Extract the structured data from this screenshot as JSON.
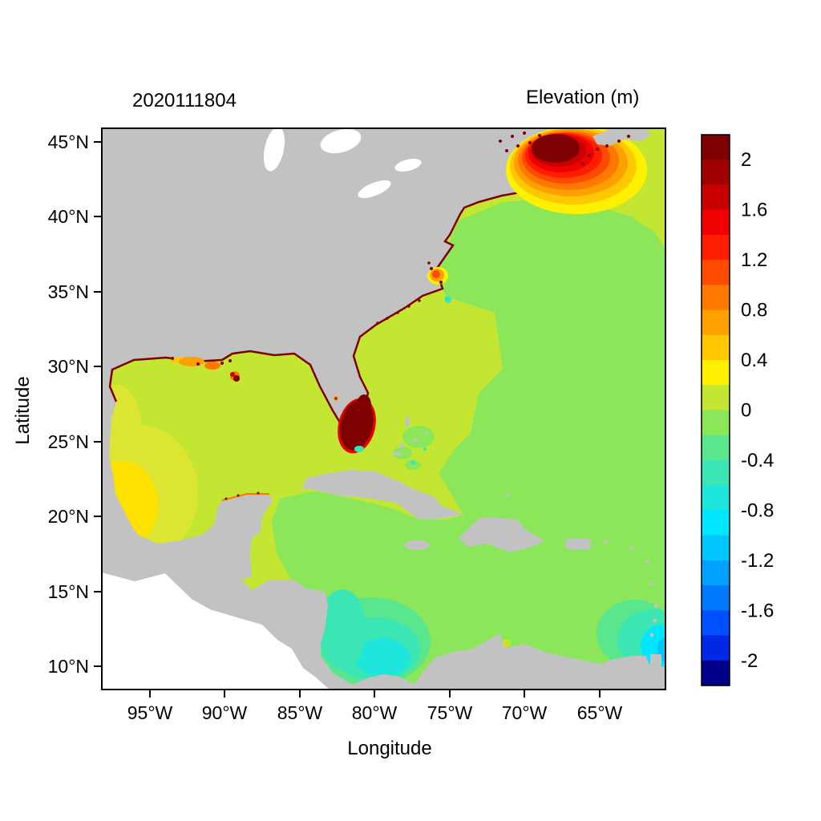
{
  "figure": {
    "timestamp_title": "2020111804",
    "colorbar_title": "Elevation (m)"
  },
  "axes": {
    "x": {
      "label": "Longitude",
      "ticks": [
        "95°W",
        "90°W",
        "85°W",
        "80°W",
        "75°W",
        "70°W",
        "65°W"
      ]
    },
    "y": {
      "label": "Latitude",
      "ticks": [
        "45°N",
        "40°N",
        "35°N",
        "30°N",
        "25°N",
        "20°N",
        "15°N",
        "10°N"
      ]
    }
  },
  "colorbar": {
    "labels": [
      "2",
      "1.6",
      "1.2",
      "0.8",
      "0.4",
      "0",
      "-0.4",
      "-0.8",
      "-1.2",
      "-1.6",
      "-2"
    ],
    "values": [
      2,
      1.6,
      1.2,
      0.8,
      0.4,
      0,
      -0.4,
      -0.8,
      -1.2,
      -1.6,
      -2
    ],
    "range": [
      -2.2,
      2.2
    ],
    "units": "m",
    "colors_top_to_bottom": [
      "#7F0000",
      "#A00000",
      "#C80000",
      "#F00000",
      "#FF1E00",
      "#FF4B00",
      "#FF7800",
      "#FFA000",
      "#FFC800",
      "#FFF000",
      "#C3E632",
      "#8CE65A",
      "#5AE68C",
      "#3CE6B4",
      "#1EE6DC",
      "#00E6FF",
      "#00C8FF",
      "#00A0FF",
      "#0078FF",
      "#0050FF",
      "#0028E6",
      "#00008B"
    ]
  },
  "map_colors": {
    "land": "#C2C2C2",
    "outside_domain": "#FFFFFF",
    "ocean_base": "#C3E632",
    "ocean_green": "#8CE65A",
    "teal": "#3CE6B4",
    "cyan": "#00E6FF",
    "surge_core": "#7F0000"
  },
  "chart_data": {
    "type": "heatmap",
    "title": "Elevation (m)",
    "timestamp": "2020111804",
    "xlabel": "Longitude",
    "ylabel": "Latitude",
    "lon_min_deg": -98.2,
    "lon_max_deg": -60.6,
    "lat_min_deg": 8.4,
    "lat_max_deg": 45.9,
    "value_units": "m",
    "value_range": [
      -2.2,
      2.2
    ],
    "contour_step": 0.2,
    "legend_position": "right",
    "grid": false,
    "regions": [
      {
        "name": "Gulf of Maine / Bay of Fundy surge maximum",
        "lon": -68.0,
        "lat": 43.5,
        "elevation_m": 2.2
      },
      {
        "name": "South Florida flooded area",
        "lon": -81.0,
        "lat": 26.0,
        "elevation_m": 2.1
      },
      {
        "name": "Pamlico Sound / North Carolina coast spot",
        "lon": -76.2,
        "lat": 36.5,
        "elevation_m": 1.0
      },
      {
        "name": "Louisiana coastal strip",
        "lon": -91.0,
        "lat": 29.3,
        "elevation_m": 0.9
      },
      {
        "name": "Bay of Campeche / SW Gulf of Mexico",
        "lon": -96.5,
        "lat": 21.0,
        "elevation_m": 0.5
      },
      {
        "name": "Gulf of Mexico open water",
        "lon": -90.0,
        "lat": 25.0,
        "elevation_m": 0.3
      },
      {
        "name": "Western Atlantic / Gulf Stream coastal band",
        "lon": -78.0,
        "lat": 31.0,
        "elevation_m": 0.2
      },
      {
        "name": "Central Atlantic",
        "lon": -68.0,
        "lat": 36.0,
        "elevation_m": -0.1
      },
      {
        "name": "Caribbean Sea",
        "lon": -75.0,
        "lat": 15.0,
        "elevation_m": -0.1
      },
      {
        "name": "SW Caribbean near Panama",
        "lon": -79.5,
        "lat": 10.5,
        "elevation_m": -0.6
      },
      {
        "name": "SE corner near Trinidad / Tobago",
        "lon": -61.0,
        "lat": 11.0,
        "elevation_m": -0.9
      }
    ]
  }
}
